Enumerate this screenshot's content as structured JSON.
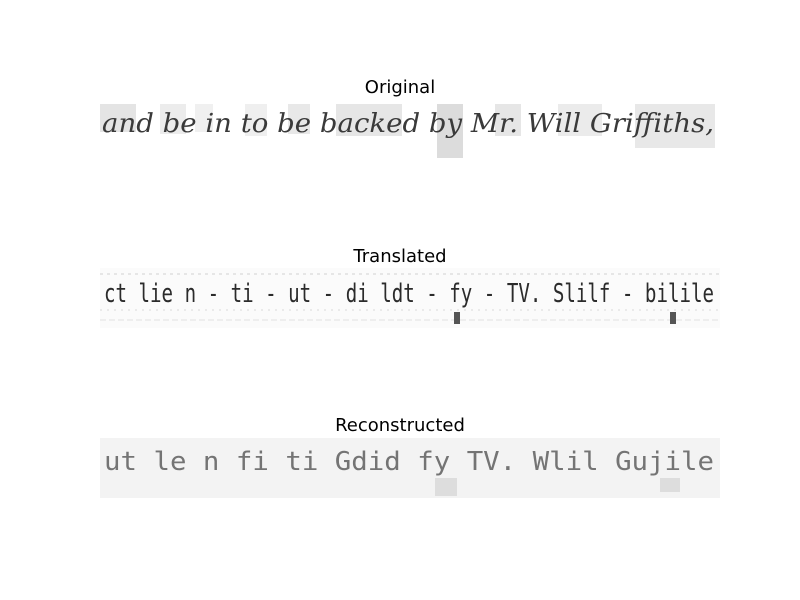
{
  "panels": [
    {
      "title": "Original",
      "text": "and be in to be backed by Mr. Will Griffiths,"
    },
    {
      "title": "Translated",
      "text": "ct lie n - ti - ut - di ldt - fy - TV. Slilf - bilile"
    },
    {
      "title": "Reconstructed",
      "text": "ut le n fi ti Gdid fy TV. Wlil Gujile"
    }
  ]
}
